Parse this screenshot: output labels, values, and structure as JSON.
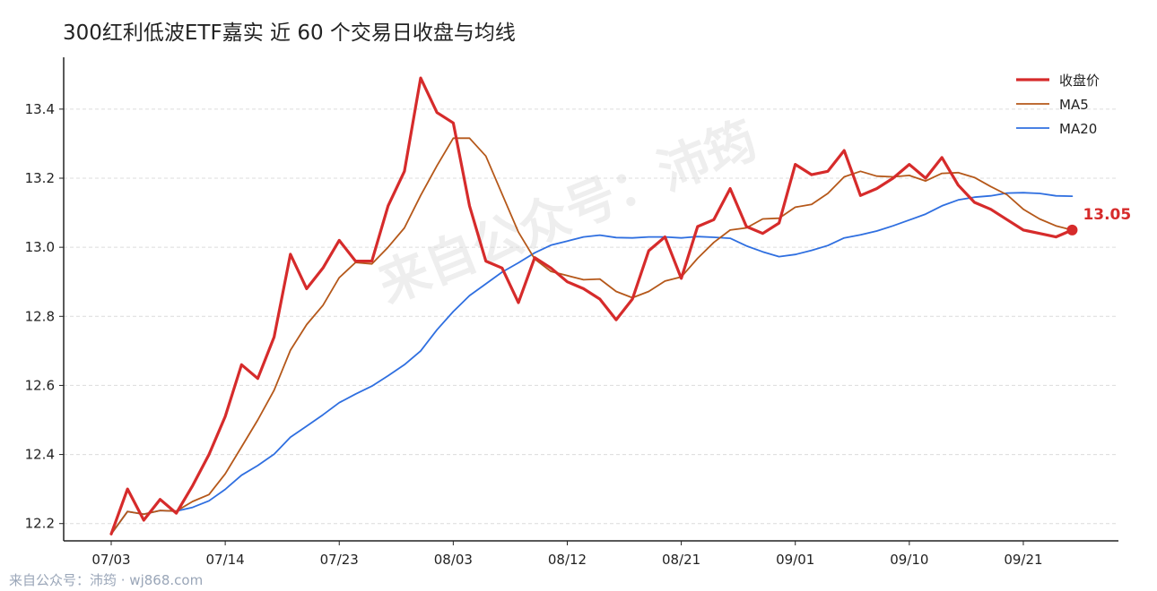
{
  "title": "300红利低波ETF嘉实 近 60 个交易日收盘与均线",
  "watermark": "来自公众号：沛筠",
  "footer": "来自公众号：沛筠 · wj868.com",
  "colors": {
    "close": "#d62b2b",
    "ma5": "#b5581a",
    "ma20": "#2f6fe0",
    "grid": "#dcdcdc",
    "axis": "#222222"
  },
  "chart_data": {
    "type": "line",
    "title": "300红利低波ETF嘉实 近 60 个交易日收盘与均线",
    "xlabel": "",
    "ylabel": "",
    "ylim": [
      12.15,
      13.55
    ],
    "yticks": [
      "12.2",
      "12.4",
      "12.6",
      "12.8",
      "13.0",
      "13.2",
      "13.4"
    ],
    "xticks": [
      {
        "label": "07/03",
        "index": 0
      },
      {
        "label": "07/14",
        "index": 7
      },
      {
        "label": "07/23",
        "index": 14
      },
      {
        "label": "08/03",
        "index": 21
      },
      {
        "label": "08/12",
        "index": 28
      },
      {
        "label": "08/21",
        "index": 35
      },
      {
        "label": "09/01",
        "index": 42
      },
      {
        "label": "09/10",
        "index": 49
      },
      {
        "label": "09/21",
        "index": 56
      }
    ],
    "legend_position": "top-right",
    "grid": "horizontal dashed",
    "last_value_label": "13.05",
    "series": [
      {
        "name": "收盘价",
        "values": [
          12.17,
          12.3,
          12.21,
          12.27,
          12.23,
          12.31,
          12.4,
          12.51,
          12.66,
          12.62,
          12.74,
          12.98,
          12.88,
          12.94,
          13.02,
          12.96,
          12.96,
          13.12,
          13.22,
          13.49,
          13.39,
          13.36,
          13.12,
          12.96,
          12.94,
          12.84,
          12.97,
          12.94,
          12.9,
          12.88,
          12.85,
          12.79,
          12.85,
          12.99,
          13.03,
          12.91,
          13.06,
          13.08,
          13.17,
          13.06,
          13.04,
          13.07,
          13.24,
          13.21,
          13.22,
          13.28,
          13.15,
          13.17,
          13.2,
          13.24,
          13.2,
          13.26,
          13.18,
          13.13,
          13.11,
          13.08,
          13.05,
          13.04,
          13.03,
          13.05
        ]
      },
      {
        "name": "MA5",
        "values": [
          12.17,
          12.235,
          12.227,
          12.238,
          12.236,
          12.264,
          12.284,
          12.344,
          12.422,
          12.5,
          12.586,
          12.702,
          12.776,
          12.832,
          12.912,
          12.956,
          12.952,
          13.0,
          13.056,
          13.15,
          13.236,
          13.316,
          13.316,
          13.264,
          13.154,
          13.044,
          12.966,
          12.93,
          12.918,
          12.906,
          12.908,
          12.872,
          12.854,
          12.872,
          12.902,
          12.914,
          12.968,
          13.014,
          13.05,
          13.056,
          13.082,
          13.084,
          13.116,
          13.124,
          13.156,
          13.204,
          13.22,
          13.206,
          13.204,
          13.208,
          13.192,
          13.214,
          13.216,
          13.202,
          13.176,
          13.152,
          13.11,
          13.082,
          13.062,
          13.05
        ]
      },
      {
        "name": "MA20",
        "values": [
          12.17,
          12.235,
          12.227,
          12.238,
          12.236,
          12.247,
          12.266,
          12.299,
          12.34,
          12.368,
          12.401,
          12.45,
          12.482,
          12.515,
          12.55,
          12.575,
          12.598,
          12.628,
          12.66,
          12.7,
          12.761,
          12.814,
          12.86,
          12.894,
          12.928,
          12.955,
          12.984,
          13.006,
          13.018,
          13.03,
          13.035,
          13.028,
          13.027,
          13.03,
          13.03,
          13.027,
          13.031,
          13.029,
          13.026,
          13.004,
          12.987,
          12.973,
          12.979,
          12.991,
          13.005,
          13.027,
          13.036,
          13.047,
          13.062,
          13.079,
          13.096,
          13.12,
          13.137,
          13.145,
          13.149,
          13.157,
          13.158,
          13.156,
          13.149,
          13.148
        ]
      }
    ]
  }
}
